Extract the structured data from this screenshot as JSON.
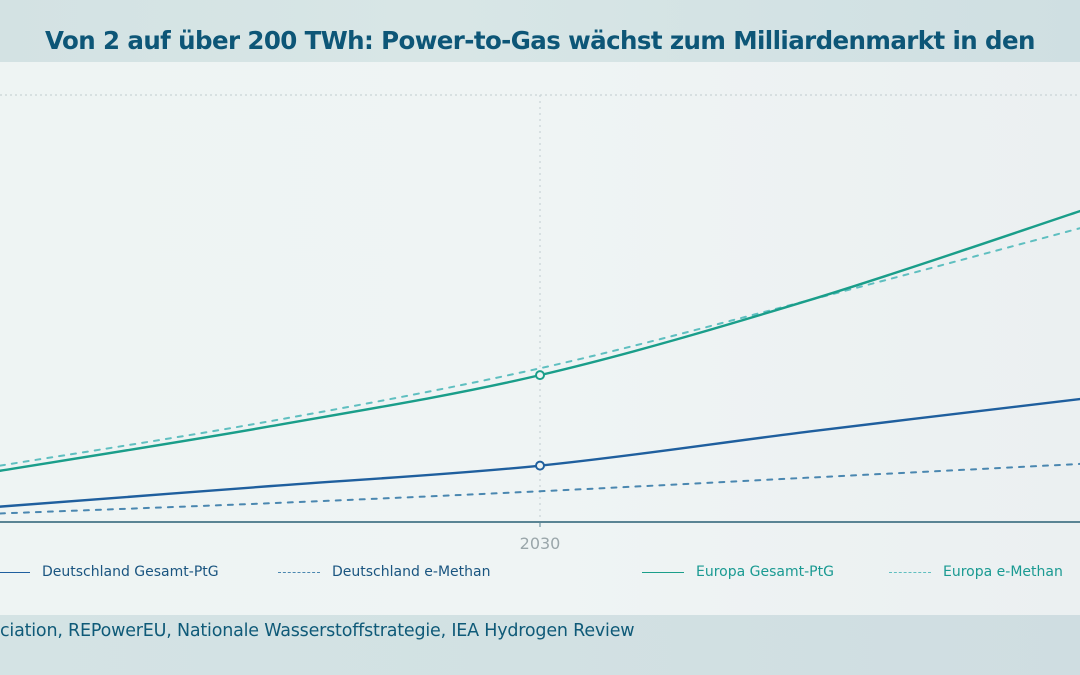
{
  "header": {
    "title": "Von 2 auf über 200 TWh: Power-to-Gas wächst zum Milliardenmarkt in den"
  },
  "footer": {
    "source": "ciation, REPowerEU, Nationale Wasserstoffstrategie, IEA Hydrogen Review"
  },
  "colors": {
    "title": "#0d5677",
    "de_total": "#1f5f9e",
    "de_methane": "#4a87b0",
    "eu_total": "#1a9e8a",
    "eu_methane": "#5fbfc0",
    "axis": "#5a8494",
    "grid": "#c9d3d5"
  },
  "chart_data": {
    "type": "line",
    "title": "Von 2 auf über 200 TWh: Power-to-Gas wächst zum Milliardenmarkt in den",
    "xlabel": "",
    "ylabel": "",
    "x": [
      2025,
      2027.5,
      2030,
      2032.5,
      2035
    ],
    "xlim": [
      2025,
      2035
    ],
    "ylim": [
      0,
      250
    ],
    "x_ticks": [
      {
        "value": 2030,
        "label": "2030"
      }
    ],
    "grid": true,
    "legend_position": "bottom",
    "highlighted_x": 2030,
    "series": [
      {
        "key": "de_total",
        "name": "Deutschland Gesamt-PtG",
        "style": "solid",
        "values": [
          9,
          21,
          33,
          53,
          72
        ],
        "marker_at": 2030
      },
      {
        "key": "de_methane",
        "name": "Deutschland e-Methan",
        "style": "dashed",
        "values": [
          5,
          11,
          18,
          26,
          34
        ]
      },
      {
        "key": "eu_total",
        "name": "Europa Gesamt-PtG",
        "style": "solid",
        "values": [
          30,
          56,
          86,
          130,
          182
        ],
        "marker_at": 2030
      },
      {
        "key": "eu_methane",
        "name": "Europa e-Methan",
        "style": "dashed",
        "values": [
          33,
          59,
          90,
          130,
          172
        ]
      }
    ]
  },
  "legend": [
    {
      "label": "Deutschland Gesamt-PtG",
      "swatch": "solid"
    },
    {
      "label": "Deutschland e-Methan",
      "swatch": "dashed"
    },
    {
      "label": "Europa Gesamt-PtG",
      "swatch": "solid"
    },
    {
      "label": "Europa e-Methan",
      "swatch": "dashed"
    }
  ]
}
